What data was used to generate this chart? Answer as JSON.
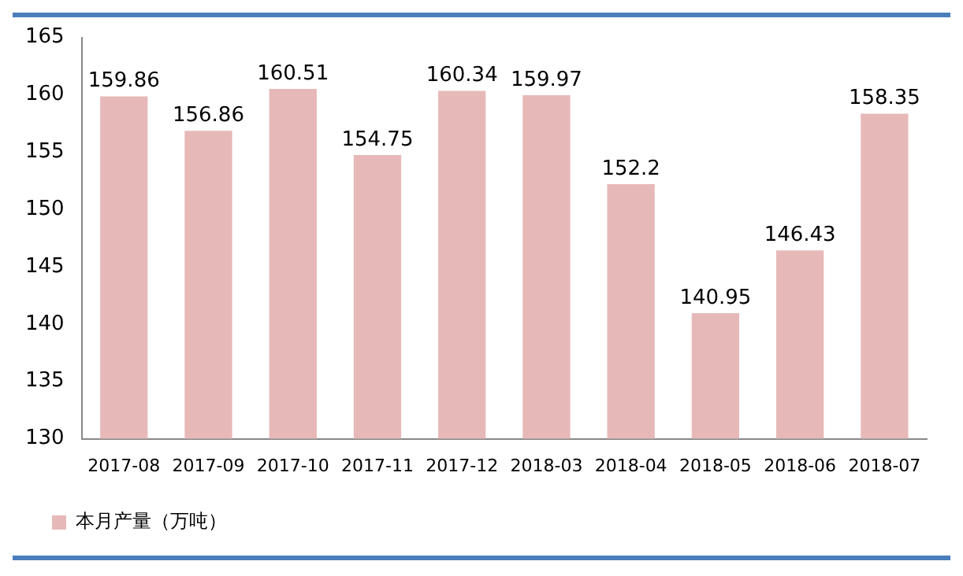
{
  "chart_data": {
    "type": "bar",
    "categories": [
      "2017-08",
      "2017-09",
      "2017-10",
      "2017-11",
      "2017-12",
      "2018-03",
      "2018-04",
      "2018-05",
      "2018-06",
      "2018-07"
    ],
    "series": [
      {
        "name": "本月产量（万吨）",
        "color": "#e6b9b8",
        "values": [
          159.86,
          156.86,
          160.51,
          154.75,
          160.34,
          159.97,
          152.2,
          140.95,
          146.43,
          158.35
        ]
      }
    ],
    "ylim": [
      130,
      165
    ],
    "yticks": [
      130,
      135,
      140,
      145,
      150,
      155,
      160,
      165
    ],
    "grid": false,
    "legend": "bottom left",
    "data_labels": true
  }
}
